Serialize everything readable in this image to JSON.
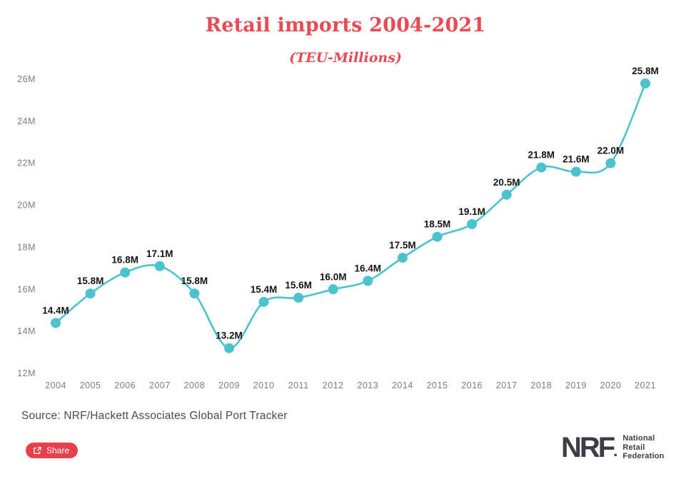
{
  "header": {
    "title": "Retail imports 2004-2021",
    "subtitle": "(TEU-Millions)"
  },
  "chart_data": {
    "type": "line",
    "title": "Retail imports 2004-2021",
    "subtitle": "(TEU-Millions)",
    "x": [
      "2004",
      "2005",
      "2006",
      "2007",
      "2008",
      "2009",
      "2010",
      "2011",
      "2012",
      "2013",
      "2014",
      "2015",
      "2016",
      "2017",
      "2018",
      "2019",
      "2020",
      "2021"
    ],
    "values": [
      14.4,
      15.8,
      16.8,
      17.1,
      15.8,
      13.2,
      15.4,
      15.6,
      16.0,
      16.4,
      17.5,
      18.5,
      19.1,
      20.5,
      21.8,
      21.6,
      22.0,
      25.8
    ],
    "point_labels": [
      "14.4M",
      "15.8M",
      "16.8M",
      "17.1M",
      "15.8M",
      "13.2M",
      "15.4M",
      "15.6M",
      "16.0M",
      "16.4M",
      "17.5M",
      "18.5M",
      "19.1M",
      "20.5M",
      "21.8M",
      "21.6M",
      "22.0M",
      "25.8M"
    ],
    "y_ticks": [
      "12M",
      "14M",
      "16M",
      "18M",
      "20M",
      "22M",
      "24M",
      "26M"
    ],
    "y_tick_values": [
      12,
      14,
      16,
      18,
      20,
      22,
      24,
      26
    ],
    "ylim": [
      12,
      26
    ],
    "xlabel": "",
    "ylabel": "",
    "grid": false,
    "legend_position": "none",
    "line_color": "#4bc3cd"
  },
  "footer": {
    "source": "Source: NRF/Hackett Associates Global Port Tracker",
    "share_label": "Share"
  },
  "branding": {
    "logo_text": "NRF",
    "logo_dot": ".",
    "tagline_line1": "National",
    "tagline_line2": "Retail",
    "tagline_line3": "Federation"
  },
  "colors": {
    "accent_red": "#ec4a52",
    "button_red": "#e7404d",
    "line_teal": "#4bc3cd",
    "label_dark": "#141414",
    "axis_gray": "#7d7d7d",
    "source_gray": "#4b4b4b",
    "logo_charcoal": "#3d3d46"
  }
}
